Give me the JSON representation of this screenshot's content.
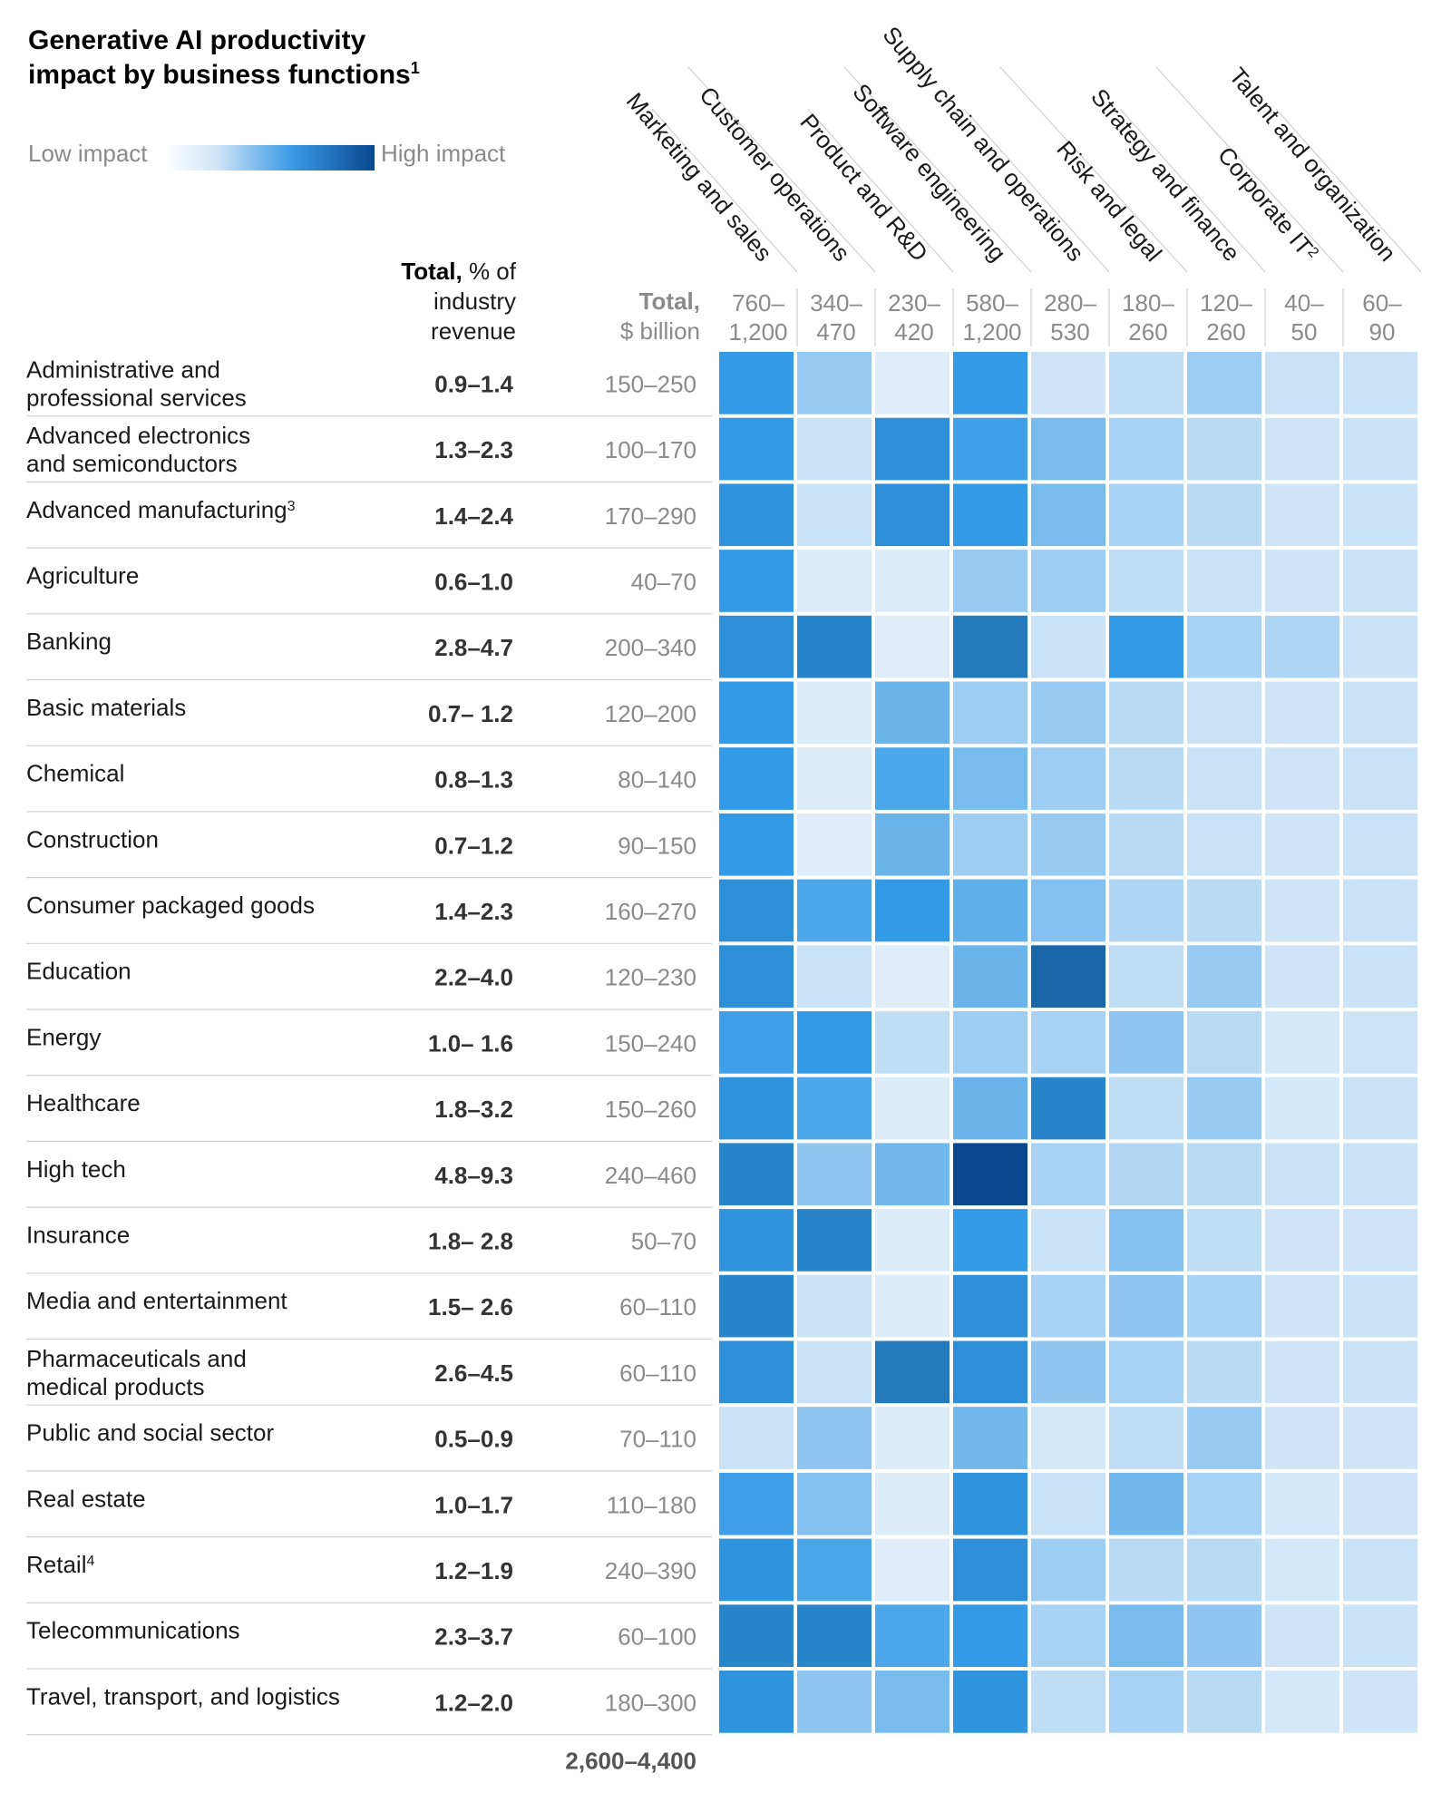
{
  "title_line1": "Generative AI productivity",
  "title_line2": "impact by business functions",
  "title_footnote": "1",
  "legend": {
    "low": "Low impact",
    "high": "High impact"
  },
  "header_pct": {
    "bold": "Total,",
    "rest_line1": "% of",
    "line2": "industry",
    "line3": "revenue"
  },
  "header_billion": {
    "bold": "Total,",
    "line2": "$ billion"
  },
  "colors": {
    "low": "#e8f3fb",
    "high": "#08488f",
    "grid": "#ffffff",
    "rule": "#d0d0d0",
    "muted": "#8a8a8a"
  },
  "chart_data": {
    "type": "heatmap",
    "scale": "0-10 relative impact (low to high)",
    "functions": [
      {
        "name": "Marketing and sales",
        "footnote": "",
        "total_line1": "760–",
        "total_line2": "1,200"
      },
      {
        "name": "Customer operations",
        "footnote": "",
        "total_line1": "340–",
        "total_line2": "470"
      },
      {
        "name": "Product and R&D",
        "footnote": "",
        "total_line1": "230–",
        "total_line2": "420"
      },
      {
        "name": "Software engineering",
        "footnote": "",
        "total_line1": "580–",
        "total_line2": "1,200"
      },
      {
        "name": "Supply chain and operations",
        "footnote": "",
        "total_line1": "280–",
        "total_line2": "530"
      },
      {
        "name": "Risk and legal",
        "footnote": "",
        "total_line1": "180–",
        "total_line2": "260"
      },
      {
        "name": "Strategy and finance",
        "footnote": "",
        "total_line1": "120–",
        "total_line2": "260"
      },
      {
        "name": "Corporate IT",
        "footnote": "2",
        "total_line1": "40–",
        "total_line2": "50"
      },
      {
        "name": "Talent and organization",
        "footnote": "",
        "total_line1": "60–",
        "total_line2": "90"
      }
    ],
    "industries": [
      {
        "line1": "Administrative and",
        "line2": "professional services",
        "footnote": "",
        "pct": "0.9–1.4",
        "billion": "150–250",
        "values": [
          6,
          3,
          0.5,
          6,
          1.2,
          1.8,
          2.8,
          1.5,
          1.5
        ]
      },
      {
        "line1": "Advanced electronics",
        "line2": "and semiconductors",
        "footnote": "",
        "pct": "1.3–2.3",
        "billion": "100–170",
        "values": [
          6,
          1.5,
          6.5,
          5.5,
          3.8,
          2.5,
          2,
          1.2,
          1.5
        ]
      },
      {
        "line1": "Advanced manufacturing",
        "line2": "",
        "footnote": "3",
        "pct": "1.4–2.4",
        "billion": "170–290",
        "values": [
          6.3,
          1.5,
          6.5,
          6,
          3.8,
          2.5,
          2,
          1.2,
          1.5
        ]
      },
      {
        "line1": "Agriculture",
        "line2": "",
        "footnote": "",
        "pct": "0.6–1.0",
        "billion": "40–70",
        "values": [
          6,
          0.6,
          0.6,
          3,
          2.8,
          1.8,
          1.5,
          1.2,
          1.5
        ]
      },
      {
        "line1": "Banking",
        "line2": "",
        "footnote": "",
        "pct": "2.8–4.7",
        "billion": "200–340",
        "values": [
          6.5,
          7,
          0.5,
          7.5,
          1.5,
          6,
          2.5,
          2.3,
          1.5
        ]
      },
      {
        "line1": "Basic materials",
        "line2": "",
        "footnote": "",
        "pct": "0.7– 1.2",
        "billion": "120–200",
        "values": [
          6,
          0.6,
          4.2,
          2.8,
          3,
          2,
          1.5,
          1.2,
          1.5
        ]
      },
      {
        "line1": "Chemical",
        "line2": "",
        "footnote": "",
        "pct": "0.8–1.3",
        "billion": "80–140",
        "values": [
          6,
          0.6,
          5,
          3.8,
          2.8,
          2,
          1.5,
          1.2,
          1.5
        ]
      },
      {
        "line1": "Construction",
        "line2": "",
        "footnote": "",
        "pct": "0.7–1.2",
        "billion": "90–150",
        "values": [
          6,
          0.5,
          4.2,
          2.8,
          3,
          2,
          1.5,
          1.2,
          1.5
        ]
      },
      {
        "line1": "Consumer packaged goods",
        "line2": "",
        "footnote": "",
        "pct": "1.4–2.3",
        "billion": "160–270",
        "values": [
          6.5,
          5,
          6,
          4.5,
          3.5,
          2.3,
          2,
          1.2,
          1.5
        ]
      },
      {
        "line1": "Education",
        "line2": "",
        "footnote": "",
        "pct": "2.2–4.0",
        "billion": "120–230",
        "values": [
          6.5,
          1.5,
          0.5,
          4.2,
          8.5,
          1.8,
          3,
          1.2,
          1.5
        ]
      },
      {
        "line1": "Energy",
        "line2": "",
        "footnote": "",
        "pct": "1.0– 1.6",
        "billion": "150–240",
        "values": [
          5.5,
          6,
          1.8,
          2.8,
          2.5,
          3.2,
          2,
          1,
          1.3
        ]
      },
      {
        "line1": "Healthcare",
        "line2": "",
        "footnote": "",
        "pct": "1.8–3.2",
        "billion": "150–260",
        "values": [
          6.3,
          5,
          0.6,
          4.2,
          7,
          1.8,
          3,
          1,
          1.5
        ]
      },
      {
        "line1": "High tech",
        "line2": "",
        "footnote": "",
        "pct": "4.8–9.3",
        "billion": "240–460",
        "values": [
          7,
          3.2,
          4,
          10,
          2.5,
          2.2,
          2,
          1.5,
          1.5
        ]
      },
      {
        "line1": "Insurance",
        "line2": "",
        "footnote": "",
        "pct": "1.8– 2.8",
        "billion": "50–70",
        "values": [
          6.3,
          7,
          0.6,
          6,
          1.5,
          3.5,
          1.8,
          1.2,
          1.2
        ]
      },
      {
        "line1": "Media and entertainment",
        "line2": "",
        "footnote": "",
        "pct": "1.5– 2.6",
        "billion": "60–110",
        "values": [
          7,
          1.5,
          0.6,
          6.5,
          2.5,
          3.2,
          2.5,
          1.2,
          1.5
        ]
      },
      {
        "line1": "Pharmaceuticals and",
        "line2": "medical products",
        "footnote": "",
        "pct": "2.6–4.5",
        "billion": "60–110",
        "values": [
          6.5,
          1.5,
          7.5,
          6.5,
          3.2,
          2.5,
          2,
          1.2,
          1.5
        ]
      },
      {
        "line1": "Public and social sector",
        "line2": "",
        "footnote": "",
        "pct": "0.5–0.9",
        "billion": "70–110",
        "values": [
          1.5,
          3.2,
          0.6,
          4,
          1,
          1.8,
          3,
          1.2,
          1.2
        ]
      },
      {
        "line1": "Real estate",
        "line2": "",
        "footnote": "",
        "pct": "1.0–1.7",
        "billion": "110–180",
        "values": [
          5.5,
          3.5,
          0.6,
          6.3,
          1.5,
          4,
          2.5,
          1,
          1.2
        ]
      },
      {
        "line1": "Retail",
        "line2": "",
        "footnote": "4",
        "pct": "1.2–1.9",
        "billion": "240–390",
        "values": [
          6.3,
          5,
          0.5,
          6.5,
          2.8,
          2,
          2,
          1,
          1.5
        ]
      },
      {
        "line1": "Telecommunications",
        "line2": "",
        "footnote": "",
        "pct": "2.3–3.7",
        "billion": "60–100",
        "values": [
          7,
          7,
          5,
          6,
          2.5,
          3.8,
          3.2,
          1.2,
          1.5
        ]
      },
      {
        "line1": "Travel, transport, and logistics",
        "line2": "",
        "footnote": "",
        "pct": "1.2–2.0",
        "billion": "180–300",
        "values": [
          6.3,
          3.2,
          3.8,
          6.3,
          1.8,
          2.5,
          2,
          1,
          1.2
        ]
      }
    ],
    "grand_total": "2,600–4,400"
  }
}
